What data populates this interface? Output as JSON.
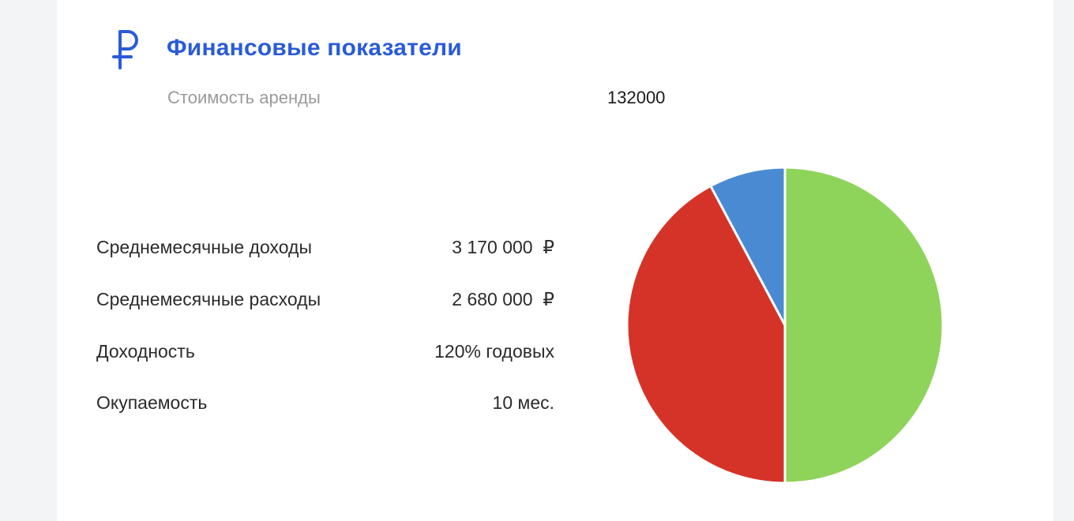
{
  "header": {
    "title": "Финансовые показатели",
    "icon": "ruble-icon",
    "accent_color": "#2a5bd7"
  },
  "rent": {
    "label": "Стоимость аренды",
    "value": "132000"
  },
  "stats": [
    {
      "label": "Среднемесячные доходы",
      "value": "3 170 000  ₽"
    },
    {
      "label": "Среднемесячные расходы",
      "value": "2 680 000  ₽"
    },
    {
      "label": "Доходность",
      "value": "120% годовых"
    },
    {
      "label": "Окупаемость",
      "value": "10 мес."
    }
  ],
  "chart_data": {
    "type": "pie",
    "title": "",
    "slices": [
      {
        "value": 50.0,
        "color": "#8ed45a"
      },
      {
        "value": 42.2,
        "color": "#d63328"
      },
      {
        "value": 7.8,
        "color": "#4a8ad2"
      }
    ]
  }
}
